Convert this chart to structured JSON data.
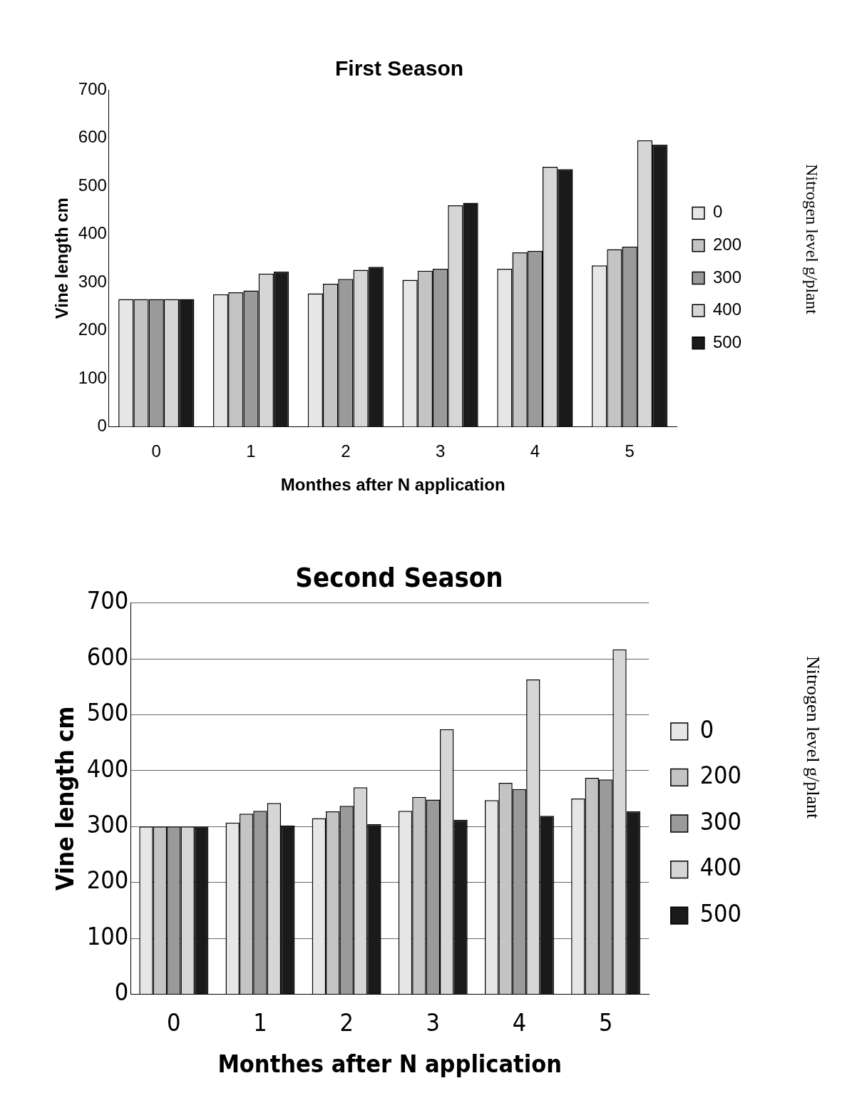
{
  "chart_data": [
    {
      "type": "bar",
      "title": "First Season",
      "xlabel": "Monthes after N application",
      "ylabel": "Vine length cm",
      "legend_title": "Nitrogen level g/plant",
      "categories": [
        "0",
        "1",
        "2",
        "3",
        "4",
        "5"
      ],
      "ylim": [
        0,
        700
      ],
      "yticks": [
        0,
        100,
        200,
        300,
        400,
        500,
        600,
        700
      ],
      "grid": false,
      "legend": "right",
      "series": [
        {
          "name": "0",
          "color": "#e6e6e6",
          "values": [
            265,
            275,
            277,
            305,
            328,
            335
          ]
        },
        {
          "name": "200",
          "color": "#c4c4c4",
          "values": [
            265,
            279,
            297,
            324,
            362,
            369
          ]
        },
        {
          "name": "300",
          "color": "#9a9a9a",
          "values": [
            265,
            283,
            307,
            328,
            365,
            374
          ]
        },
        {
          "name": "400",
          "color": "#d6d6d6",
          "values": [
            265,
            318,
            326,
            460,
            540,
            595
          ]
        },
        {
          "name": "500",
          "color": "#1a1a1a",
          "values": [
            265,
            322,
            332,
            465,
            535,
            586
          ]
        }
      ]
    },
    {
      "type": "bar",
      "title": "Second Season",
      "xlabel": "Monthes after N application",
      "ylabel": "Vine length cm",
      "legend_title": "Nitrogen level g/plant",
      "categories": [
        "0",
        "1",
        "2",
        "3",
        "4",
        "5"
      ],
      "ylim": [
        0,
        700
      ],
      "yticks": [
        0,
        100,
        200,
        300,
        400,
        500,
        600,
        700
      ],
      "grid": "y",
      "legend": "right",
      "series": [
        {
          "name": "0",
          "color": "#e6e6e6",
          "values": [
            300,
            307,
            315,
            328,
            347,
            350
          ]
        },
        {
          "name": "200",
          "color": "#c4c4c4",
          "values": [
            300,
            323,
            327,
            353,
            378,
            387
          ]
        },
        {
          "name": "300",
          "color": "#9a9a9a",
          "values": [
            300,
            328,
            337,
            348,
            367,
            384
          ]
        },
        {
          "name": "400",
          "color": "#d6d6d6",
          "values": [
            300,
            342,
            370,
            474,
            563,
            617
          ]
        },
        {
          "name": "500",
          "color": "#1a1a1a",
          "values": [
            300,
            302,
            304,
            312,
            319,
            327
          ]
        }
      ]
    }
  ]
}
